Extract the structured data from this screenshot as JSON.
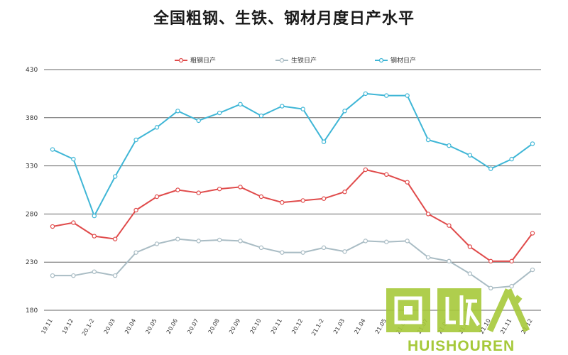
{
  "title": "全国粗钢、生铁、钢材月度日产水平",
  "chart_data": {
    "type": "line",
    "title": "全国粗钢、生铁、钢材月度日产水平",
    "categories": [
      "19.11",
      "19.12",
      "20.1-2",
      "20.03",
      "20.04",
      "20.05",
      "20.06",
      "20.07",
      "20.08",
      "20.09",
      "20.10",
      "20.11",
      "20.12",
      "21.1-2",
      "21.03",
      "21.04",
      "21.05",
      "21.06",
      "21.07",
      "21.08",
      "21.09",
      "21.10",
      "21.11",
      "21.12"
    ],
    "series": [
      {
        "name": "粗钢日产",
        "color": "#e04b4b",
        "values": [
          267,
          271,
          257,
          254,
          284,
          298,
          305,
          302,
          306,
          308,
          298,
          292,
          294,
          296,
          303,
          326,
          321,
          313,
          280,
          268,
          246,
          231,
          231,
          260
        ]
      },
      {
        "name": "生铁日产",
        "color": "#a9bcc4",
        "values": [
          216,
          216,
          220,
          216,
          240,
          249,
          254,
          252,
          253,
          252,
          245,
          240,
          240,
          245,
          241,
          252,
          251,
          252,
          235,
          231,
          218,
          203,
          205,
          222
        ]
      },
      {
        "name": "钢材日产",
        "color": "#3fb6d6",
        "values": [
          347,
          337,
          278,
          319,
          357,
          370,
          387,
          377,
          385,
          394,
          382,
          392,
          389,
          355,
          387,
          405,
          403,
          403,
          357,
          351,
          341,
          327,
          337,
          353
        ]
      }
    ],
    "ylim": [
      180,
      430
    ],
    "yticks": [
      180,
      230,
      280,
      330,
      380,
      430
    ],
    "grid": true,
    "legend_position": "top"
  },
  "watermark": {
    "text": "HUISHOUREN",
    "glyphs": "回收人",
    "color": "#a6c93a"
  }
}
